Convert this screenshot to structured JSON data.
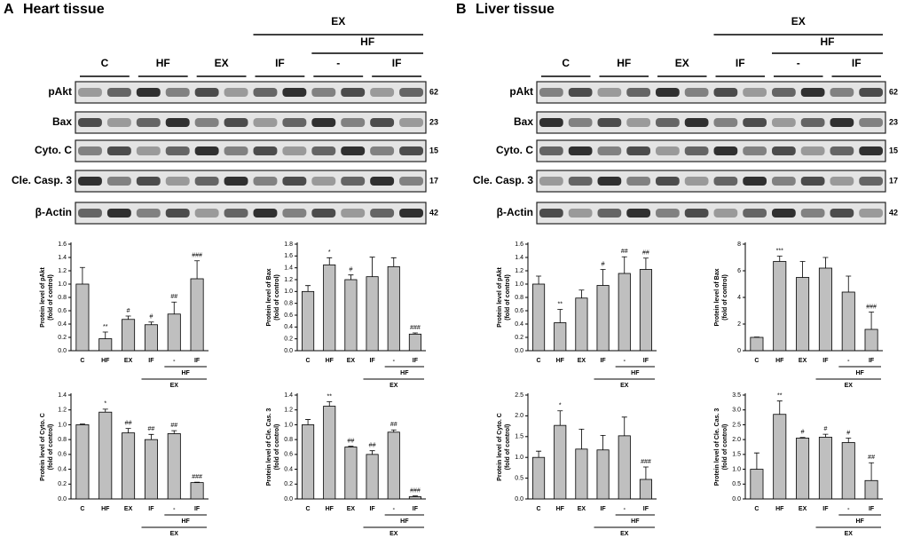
{
  "panels": [
    {
      "letter": "A",
      "title": "Heart tissue",
      "group_top": "EX",
      "group_mid": "HF",
      "lanes": [
        "C",
        "HF",
        "EX",
        "IF",
        "-",
        "IF"
      ],
      "rows": [
        {
          "label": "pAkt",
          "kda": "62"
        },
        {
          "label": "Bax",
          "kda": "23"
        },
        {
          "label": "Cyto. C",
          "kda": "15"
        },
        {
          "label": "Cle. Casp. 3",
          "kda": "17"
        },
        {
          "label": "β-Actin",
          "kda": "42"
        }
      ]
    },
    {
      "letter": "B",
      "title": "Liver tissue",
      "group_top": "EX",
      "group_mid": "HF",
      "lanes": [
        "C",
        "HF",
        "EX",
        "IF",
        "-",
        "IF"
      ],
      "rows": [
        {
          "label": "pAkt",
          "kda": "62"
        },
        {
          "label": "Bax",
          "kda": "23"
        },
        {
          "label": "Cyto. C",
          "kda": "15"
        },
        {
          "label": "Cle. Casp. 3",
          "kda": "17"
        },
        {
          "label": "β-Actin",
          "kda": "42"
        }
      ]
    }
  ],
  "chart_data": [
    {
      "type": "bar",
      "ylabel": "Protein level of pAkt",
      "ylabel2": "(fold of control)",
      "color": "#bfbfbf",
      "categories": [
        "C",
        "HF",
        "EX",
        "IF",
        "-",
        "IF"
      ],
      "group_labels": [
        "HF",
        "EX"
      ],
      "values": [
        1.0,
        0.18,
        0.47,
        0.39,
        0.55,
        1.08
      ],
      "errors": [
        0.25,
        0.1,
        0.05,
        0.04,
        0.18,
        0.27
      ],
      "annotations": [
        null,
        "**",
        "#",
        "#",
        "##",
        "###"
      ],
      "ylim": [
        0,
        1.6
      ],
      "yticks": [
        {
          "value": 0,
          "label": "0.0"
        },
        0.2,
        0.4,
        0.6,
        0.8,
        {
          "value": 1,
          "label": "1.0"
        },
        1.2,
        1.4,
        1.6
      ]
    },
    {
      "type": "bar",
      "ylabel": "Protein level of Bax",
      "ylabel2": "(fold of control)",
      "color": "#bfbfbf",
      "categories": [
        "C",
        "HF",
        "EX",
        "IF",
        "-",
        "IF"
      ],
      "group_labels": [
        "HF",
        "EX"
      ],
      "values": [
        1.0,
        1.45,
        1.2,
        1.25,
        1.42,
        0.28
      ],
      "errors": [
        0.1,
        0.12,
        0.08,
        0.33,
        0.15,
        0.02
      ],
      "annotations": [
        null,
        "*",
        "#",
        null,
        null,
        "###"
      ],
      "ylim": [
        0,
        1.8
      ],
      "yticks": [
        {
          "value": 0,
          "label": "0.0"
        },
        0.2,
        0.4,
        0.6,
        0.8,
        {
          "value": 1,
          "label": "1.0"
        },
        1.2,
        1.4,
        1.6,
        1.8
      ]
    },
    {
      "type": "bar",
      "ylabel": "Protein level of Cyto. C",
      "ylabel2": "(fold of control)",
      "color": "#bfbfbf",
      "categories": [
        "C",
        "HF",
        "EX",
        "IF",
        "-",
        "IF"
      ],
      "group_labels": [
        "HF",
        "EX"
      ],
      "values": [
        1.0,
        1.17,
        0.89,
        0.8,
        0.88,
        0.22
      ],
      "errors": [
        0.01,
        0.04,
        0.06,
        0.07,
        0.04,
        0.005
      ],
      "annotations": [
        null,
        "*",
        "##",
        "##",
        "##",
        "###"
      ],
      "ylim": [
        0,
        1.4
      ],
      "yticks": [
        {
          "value": 0,
          "label": "0.0"
        },
        0.2,
        0.4,
        0.6,
        0.8,
        {
          "value": 1,
          "label": "1.0"
        },
        1.2,
        1.4
      ]
    },
    {
      "type": "bar",
      "ylabel": "Protein level of Cle. Cas. 3",
      "ylabel2": "(fold of control)",
      "color": "#bfbfbf",
      "categories": [
        "C",
        "HF",
        "EX",
        "IF",
        "-",
        "IF"
      ],
      "group_labels": [
        "HF",
        "EX"
      ],
      "values": [
        1.0,
        1.25,
        0.7,
        0.6,
        0.9,
        0.03
      ],
      "errors": [
        0.07,
        0.06,
        0.01,
        0.05,
        0.03,
        0.01
      ],
      "annotations": [
        null,
        "**",
        "##",
        "##",
        "##",
        "###"
      ],
      "ylim": [
        0,
        1.4
      ],
      "yticks": [
        {
          "value": 0,
          "label": "0.0"
        },
        0.2,
        0.4,
        0.6,
        0.8,
        {
          "value": 1,
          "label": "1.0"
        },
        1.2,
        1.4
      ]
    },
    {
      "type": "bar",
      "ylabel": "Protein level of pAkt",
      "ylabel2": "(fold of control)",
      "color": "#bfbfbf",
      "categories": [
        "C",
        "HF",
        "EX",
        "IF",
        "-",
        "IF"
      ],
      "group_labels": [
        "HF",
        "EX"
      ],
      "values": [
        1.0,
        0.42,
        0.79,
        0.98,
        1.16,
        1.22
      ],
      "errors": [
        0.12,
        0.2,
        0.12,
        0.24,
        0.25,
        0.17
      ],
      "annotations": [
        null,
        "**",
        null,
        "#",
        "##",
        "##"
      ],
      "ylim": [
        0,
        1.6
      ],
      "yticks": [
        {
          "value": 0,
          "label": "0.0"
        },
        0.2,
        0.4,
        0.6,
        0.8,
        {
          "value": 1,
          "label": "1.0"
        },
        1.2,
        1.4,
        1.6
      ]
    },
    {
      "type": "bar",
      "ylabel": "Protein level of Bax",
      "ylabel2": "(fold of control)",
      "color": "#bfbfbf",
      "categories": [
        "C",
        "HF",
        "EX",
        "IF",
        "-",
        "IF"
      ],
      "group_labels": [
        "HF",
        "EX"
      ],
      "values": [
        1.0,
        6.7,
        5.5,
        6.2,
        4.4,
        1.6
      ],
      "errors": [
        0.02,
        0.4,
        1.2,
        0.8,
        1.2,
        1.3
      ],
      "annotations": [
        null,
        "***",
        null,
        null,
        null,
        "###"
      ],
      "ylim": [
        0,
        8
      ],
      "yticks": [
        0,
        2,
        4,
        6,
        8
      ]
    },
    {
      "type": "bar",
      "ylabel": "Protein level of Cyto. C",
      "ylabel2": "(fold of control)",
      "color": "#bfbfbf",
      "categories": [
        "C",
        "HF",
        "EX",
        "IF",
        "-",
        "IF"
      ],
      "group_labels": [
        "HF",
        "EX"
      ],
      "values": [
        1.0,
        1.77,
        1.2,
        1.18,
        1.52,
        0.47
      ],
      "errors": [
        0.15,
        0.35,
        0.48,
        0.35,
        0.45,
        0.3
      ],
      "annotations": [
        null,
        "*",
        null,
        null,
        null,
        "###"
      ],
      "ylim": [
        0,
        2.5
      ],
      "yticks": [
        {
          "value": 0,
          "label": "0.0"
        },
        0.5,
        {
          "value": 1,
          "label": "1.0"
        },
        1.5,
        {
          "value": 2,
          "label": "2.0"
        },
        2.5
      ]
    },
    {
      "type": "bar",
      "ylabel": "Protein level of Cle. Cas. 3",
      "ylabel2": "(fold of control)",
      "color": "#bfbfbf",
      "categories": [
        "C",
        "HF",
        "EX",
        "IF",
        "-",
        "IF"
      ],
      "group_labels": [
        "HF",
        "EX"
      ],
      "values": [
        1.0,
        2.85,
        2.05,
        2.08,
        1.9,
        0.62
      ],
      "errors": [
        0.55,
        0.45,
        0.02,
        0.1,
        0.15,
        0.6
      ],
      "annotations": [
        null,
        "**",
        "#",
        "#",
        "#",
        "##"
      ],
      "ylim": [
        0,
        3.5
      ],
      "yticks": [
        {
          "value": 0,
          "label": "0.0"
        },
        0.5,
        {
          "value": 1,
          "label": "1.0"
        },
        1.5,
        {
          "value": 2,
          "label": "2.0"
        },
        2.5,
        {
          "value": 3,
          "label": "3.0"
        },
        3.5
      ]
    }
  ]
}
